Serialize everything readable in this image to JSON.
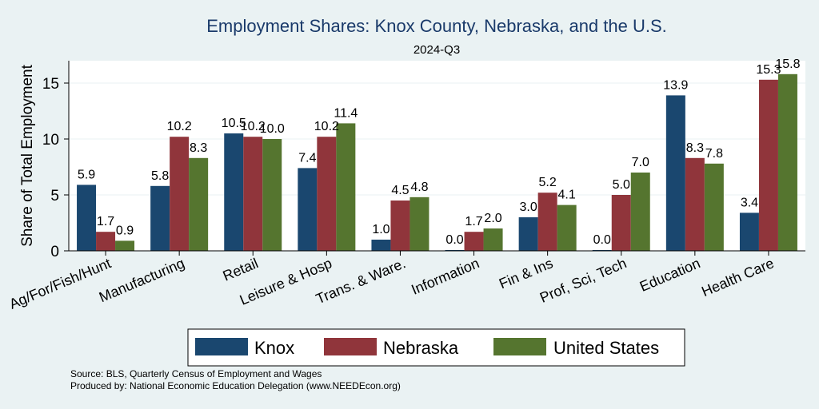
{
  "chart_data": {
    "type": "bar",
    "title": "Employment Shares: Knox County, Nebraska, and the U.S.",
    "subtitle": "2024-Q3",
    "ylabel": "Share of Total Employment",
    "xlabel": "",
    "ylim": [
      0,
      17
    ],
    "yticks": [
      0,
      5,
      10,
      15
    ],
    "grid": true,
    "legend_position": "bottom",
    "categories": [
      "Ag/For/Fish/Hunt",
      "Manufacturing",
      "Retail",
      "Leisure & Hosp",
      "Trans. & Ware.",
      "Information",
      "Fin & Ins",
      "Prof, Sci, Tech",
      "Education",
      "Health Care"
    ],
    "series": [
      {
        "name": "Knox",
        "color": "#1A476F",
        "values": [
          5.9,
          5.8,
          10.5,
          7.4,
          1.0,
          0.0,
          3.0,
          0.0,
          13.9,
          3.4
        ]
      },
      {
        "name": "Nebraska",
        "color": "#90353B",
        "values": [
          1.7,
          10.2,
          10.2,
          10.2,
          4.5,
          1.7,
          5.2,
          5.0,
          8.3,
          15.3
        ]
      },
      {
        "name": "United States",
        "color": "#55752F",
        "values": [
          0.9,
          8.3,
          10.0,
          11.4,
          4.8,
          2.0,
          4.1,
          7.0,
          7.8,
          15.8
        ]
      }
    ],
    "source": "Source: BLS, Quarterly Census of Employment and Wages",
    "producer": "Produced by: National Economic Education Delegation (www.NEEDEcon.org)"
  },
  "colors": {
    "background": "#EAF2F3",
    "plot_background": "#FFFFFF",
    "title": "#1A3A6A",
    "grid": "#EAF2F3",
    "text": "#000000"
  }
}
